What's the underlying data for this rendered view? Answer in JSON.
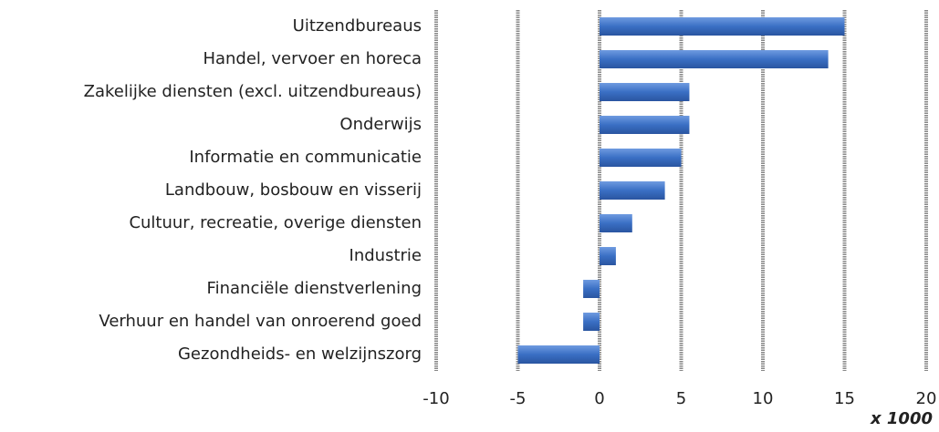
{
  "chart_data": {
    "type": "bar",
    "orientation": "horizontal",
    "categories": [
      "Uitzendbureaus",
      "Handel, vervoer en horeca",
      "Zakelijke diensten (excl. uitzendbureaus)",
      "Onderwijs",
      "Informatie en communicatie",
      "Landbouw, bosbouw en visserij",
      "Cultuur, recreatie, overige diensten",
      "Industrie",
      "Financiële dienstverlening",
      "Verhuur en handel van onroerend goed",
      "Gezondheids- en welzijnszorg"
    ],
    "values": [
      15,
      14,
      5.5,
      5.5,
      5,
      4,
      2,
      1,
      -1,
      -1,
      -5
    ],
    "color": "#3a6fc4",
    "xlim": [
      -10,
      20
    ],
    "xticks": [
      -10,
      -5,
      0,
      5,
      10,
      15,
      20
    ],
    "x_unit_label": "x 1000",
    "grid": true
  }
}
